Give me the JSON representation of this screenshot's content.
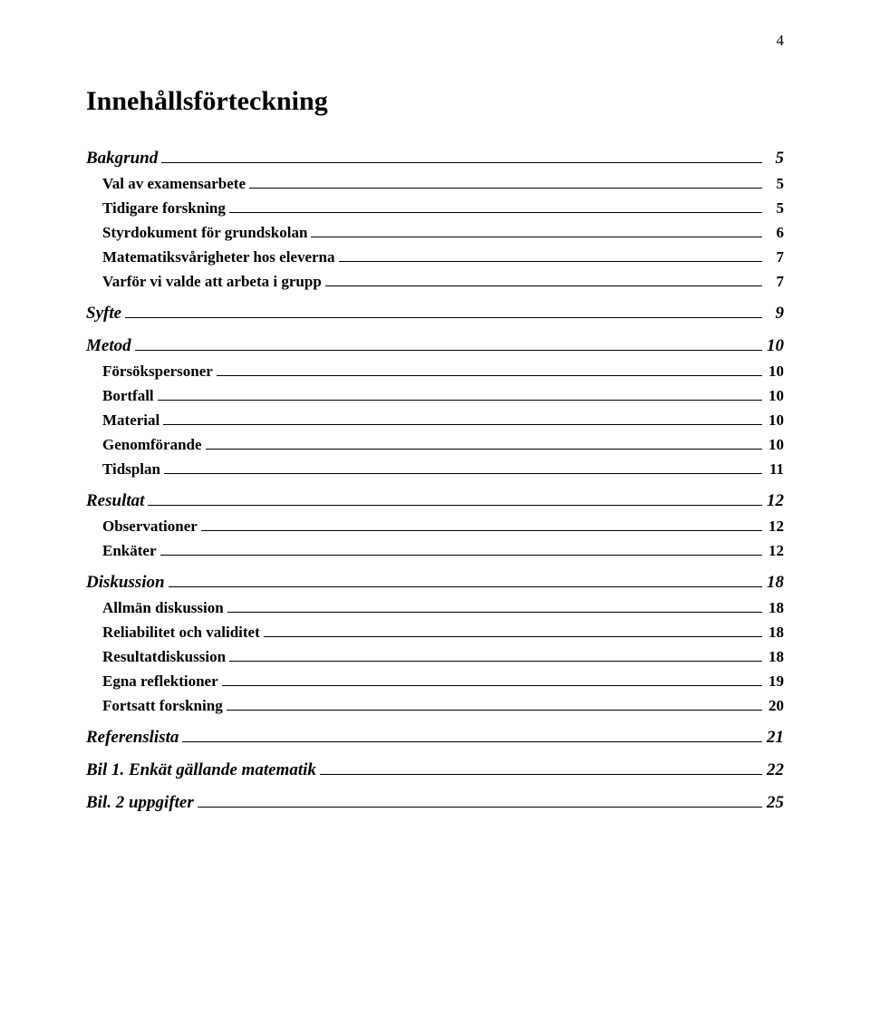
{
  "page_number": "4",
  "title": "Innehållsförteckning",
  "toc": [
    {
      "label": "Bakgrund",
      "page": "5",
      "level": 0
    },
    {
      "label": "Val av examensarbete",
      "page": "5",
      "level": 1
    },
    {
      "label": "Tidigare forskning",
      "page": "5",
      "level": 1
    },
    {
      "label": "Styrdokument för grundskolan",
      "page": "6",
      "level": 1
    },
    {
      "label": "Matematiksvårigheter hos eleverna",
      "page": "7",
      "level": 1
    },
    {
      "label": "Varför vi valde att arbeta i grupp",
      "page": "7",
      "level": 1
    },
    {
      "label": "Syfte",
      "page": "9",
      "level": 0
    },
    {
      "label": "Metod",
      "page": "10",
      "level": 0
    },
    {
      "label": "Försökspersoner",
      "page": "10",
      "level": 1
    },
    {
      "label": "Bortfall",
      "page": "10",
      "level": 1
    },
    {
      "label": "Material",
      "page": "10",
      "level": 1
    },
    {
      "label": "Genomförande",
      "page": "10",
      "level": 1
    },
    {
      "label": "Tidsplan",
      "page": "11",
      "level": 1
    },
    {
      "label": "Resultat",
      "page": "12",
      "level": 0
    },
    {
      "label": "Observationer",
      "page": "12",
      "level": 1
    },
    {
      "label": "Enkäter",
      "page": "12",
      "level": 1
    },
    {
      "label": "Diskussion",
      "page": "18",
      "level": 0
    },
    {
      "label": "Allmän diskussion",
      "page": "18",
      "level": 1
    },
    {
      "label": "Reliabilitet och validitet",
      "page": "18",
      "level": 1
    },
    {
      "label": "Resultatdiskussion",
      "page": "18",
      "level": 1
    },
    {
      "label": "Egna reflektioner",
      "page": "19",
      "level": 1
    },
    {
      "label": "Fortsatt forskning",
      "page": "20",
      "level": 1
    },
    {
      "label": "Referenslista",
      "page": "21",
      "level": 0
    },
    {
      "label": "Bil 1. Enkät gällande matematik",
      "page": "22",
      "level": 0
    },
    {
      "label": "Bil. 2 uppgifter",
      "page": "25",
      "level": 0
    }
  ]
}
